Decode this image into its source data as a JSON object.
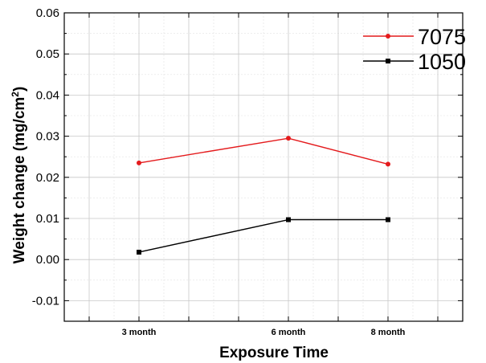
{
  "chart_data": {
    "type": "line",
    "xlabel": "Exposure Time",
    "ylabel_main": "Weight change (mg/cm",
    "ylabel_sup": "2",
    "ylabel_close": ")",
    "categories": [
      "3 month",
      "6 month",
      "8 month"
    ],
    "x_positions_months": [
      3,
      6,
      8
    ],
    "xlim_months": [
      1.5,
      9.5
    ],
    "ylim": [
      -0.015,
      0.06
    ],
    "yticks": [
      -0.01,
      0.0,
      0.01,
      0.02,
      0.03,
      0.04,
      0.05,
      0.06
    ],
    "ytick_labels": [
      "-0.01",
      "0.00",
      "0.01",
      "0.02",
      "0.03",
      "0.04",
      "0.05",
      "0.06"
    ],
    "grid": true,
    "legend_position": "top-right",
    "series": [
      {
        "name": "7075",
        "color": "#e41a1c",
        "marker": "circle",
        "values": [
          0.0235,
          0.0295,
          0.0232
        ]
      },
      {
        "name": "1050",
        "color": "#000000",
        "marker": "square",
        "values": [
          0.0018,
          0.0097,
          0.0097
        ]
      }
    ]
  }
}
